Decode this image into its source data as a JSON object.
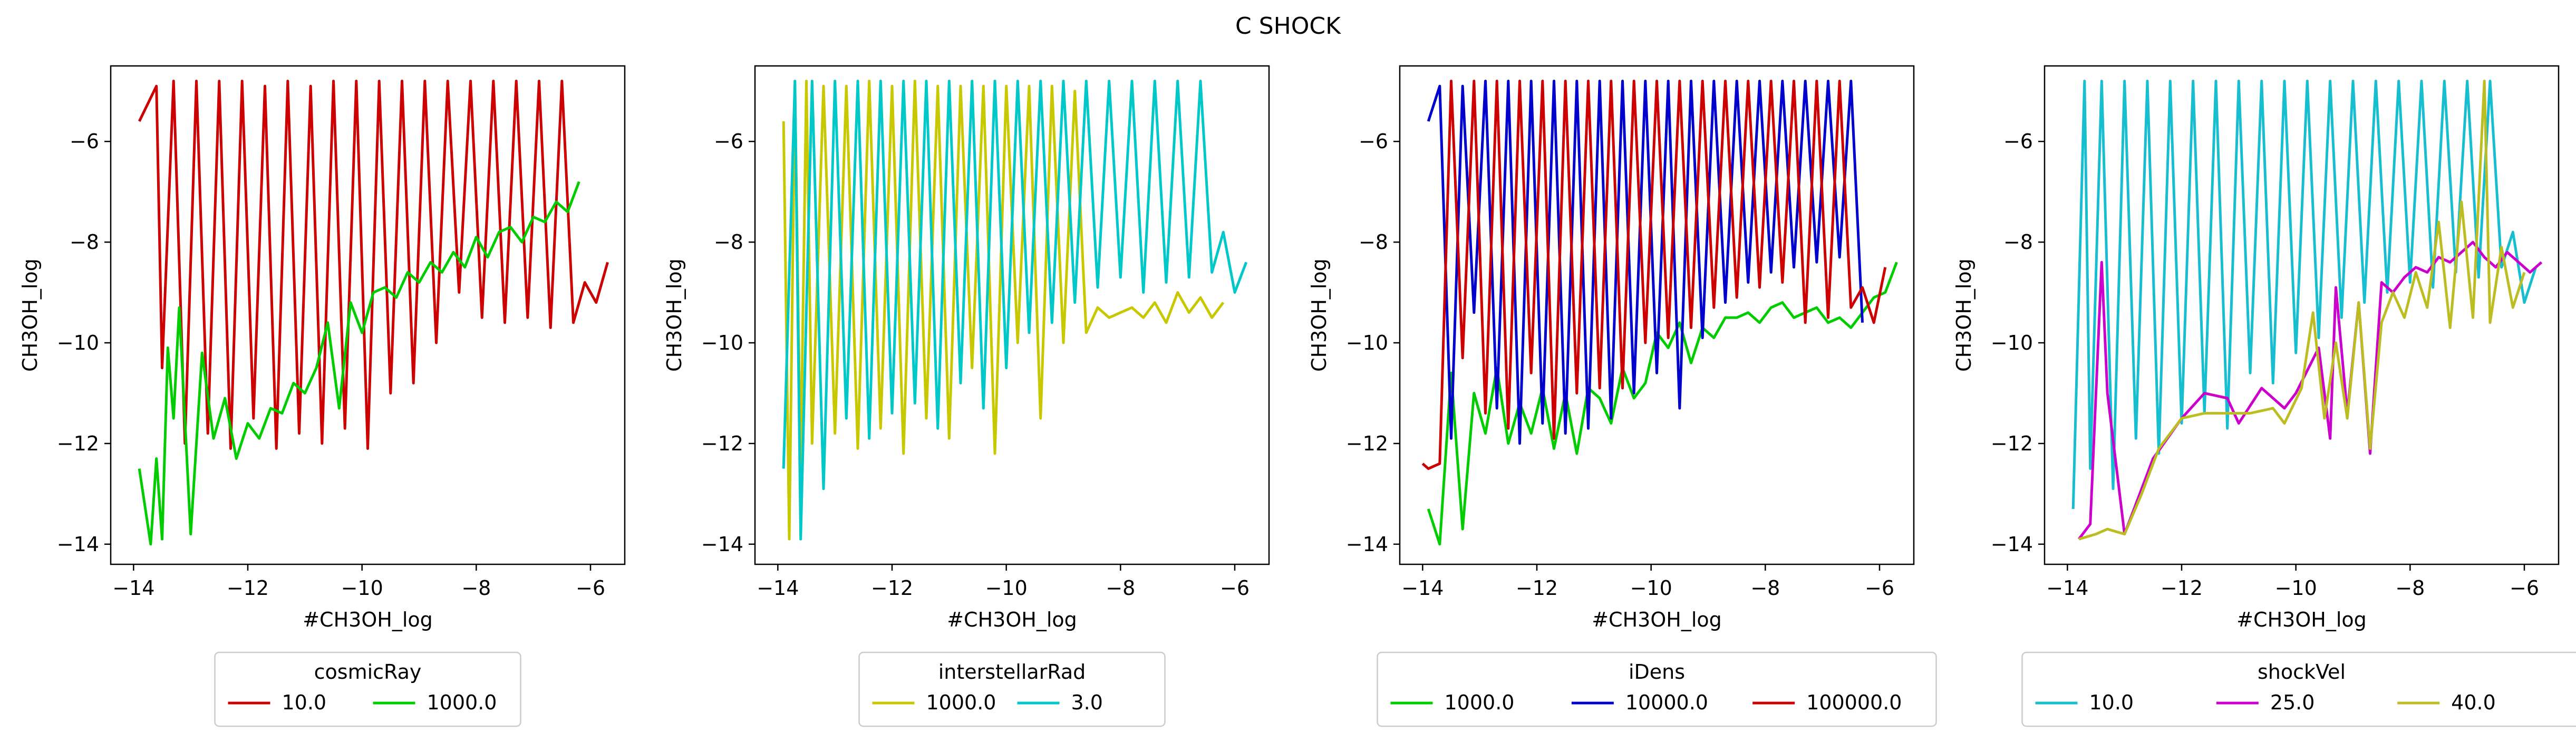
{
  "figure": {
    "title": "C SHOCK"
  },
  "chart_data": [
    {
      "type": "line",
      "xlabel": "#CH3OH_log",
      "ylabel": "CH3OH_log",
      "xlim": [
        -14.4,
        -5.4
      ],
      "ylim": [
        -14.4,
        -4.5
      ],
      "xticks": [
        -14,
        -12,
        -10,
        -8,
        -6
      ],
      "yticks": [
        -14,
        -12,
        -10,
        -8,
        -6
      ],
      "xtick_labels": [
        "−14",
        "−12",
        "−10",
        "−8",
        "−6"
      ],
      "ytick_labels": [
        "−14",
        "−12",
        "−10",
        "−8",
        "−6"
      ],
      "legend": {
        "title": "cosmicRay",
        "placement": "below",
        "columns": 2
      },
      "series": [
        {
          "name": "10.0",
          "color": "#cc0000",
          "x": [
            -13.9,
            -13.6,
            -13.5,
            -13.3,
            -13.1,
            -12.9,
            -12.7,
            -12.5,
            -12.3,
            -12.1,
            -11.9,
            -11.7,
            -11.5,
            -11.3,
            -11.1,
            -10.9,
            -10.7,
            -10.5,
            -10.3,
            -10.1,
            -9.9,
            -9.7,
            -9.5,
            -9.3,
            -9.1,
            -8.9,
            -8.7,
            -8.5,
            -8.3,
            -8.1,
            -7.9,
            -7.7,
            -7.5,
            -7.3,
            -7.1,
            -6.9,
            -6.7,
            -6.5,
            -6.3,
            -6.1,
            -5.9,
            -5.7
          ],
          "y": [
            -5.6,
            -4.9,
            -10.5,
            -4.8,
            -12.0,
            -4.8,
            -11.8,
            -4.8,
            -12.1,
            -4.8,
            -11.5,
            -4.9,
            -12.1,
            -4.8,
            -11.8,
            -4.9,
            -12.0,
            -4.8,
            -11.7,
            -4.8,
            -12.1,
            -4.8,
            -11.0,
            -4.8,
            -10.8,
            -4.8,
            -10.0,
            -4.8,
            -9.0,
            -4.8,
            -9.5,
            -4.8,
            -9.6,
            -4.8,
            -9.5,
            -4.8,
            -9.7,
            -4.8,
            -9.6,
            -8.8,
            -9.2,
            -8.4
          ]
        },
        {
          "name": "1000.0",
          "color": "#00cc00",
          "x": [
            -13.9,
            -13.7,
            -13.6,
            -13.5,
            -13.4,
            -13.3,
            -13.2,
            -13.0,
            -12.8,
            -12.6,
            -12.4,
            -12.2,
            -12.0,
            -11.8,
            -11.6,
            -11.4,
            -11.2,
            -11.0,
            -10.8,
            -10.6,
            -10.4,
            -10.2,
            -10.0,
            -9.8,
            -9.6,
            -9.4,
            -9.2,
            -9.0,
            -8.8,
            -8.6,
            -8.4,
            -8.2,
            -8.0,
            -7.8,
            -7.6,
            -7.4,
            -7.2,
            -7.0,
            -6.8,
            -6.6,
            -6.4,
            -6.2
          ],
          "y": [
            -12.5,
            -14.0,
            -12.3,
            -13.9,
            -10.1,
            -11.5,
            -9.3,
            -13.8,
            -10.2,
            -11.9,
            -11.1,
            -12.3,
            -11.6,
            -11.9,
            -11.3,
            -11.4,
            -10.8,
            -11.0,
            -10.5,
            -9.6,
            -11.3,
            -9.2,
            -9.8,
            -9.0,
            -8.9,
            -9.1,
            -8.6,
            -8.8,
            -8.4,
            -8.6,
            -8.2,
            -8.5,
            -7.9,
            -8.3,
            -7.8,
            -7.7,
            -8.0,
            -7.5,
            -7.6,
            -7.2,
            -7.4,
            -6.8
          ]
        }
      ]
    },
    {
      "type": "line",
      "xlabel": "#CH3OH_log",
      "ylabel": "CH3OH_log",
      "xlim": [
        -14.4,
        -5.4
      ],
      "ylim": [
        -14.4,
        -4.5
      ],
      "xticks": [
        -14,
        -12,
        -10,
        -8,
        -6
      ],
      "yticks": [
        -14,
        -12,
        -10,
        -8,
        -6
      ],
      "xtick_labels": [
        "−14",
        "−12",
        "−10",
        "−8",
        "−6"
      ],
      "ytick_labels": [
        "−14",
        "−12",
        "−10",
        "−8",
        "−6"
      ],
      "legend": {
        "title": "interstellarRad",
        "placement": "below",
        "columns": 2
      },
      "series": [
        {
          "name": "1000.0",
          "color": "#c8c800",
          "x": [
            -13.9,
            -13.8,
            -13.7,
            -13.6,
            -13.5,
            -13.4,
            -13.2,
            -13.0,
            -12.8,
            -12.6,
            -12.4,
            -12.2,
            -12.0,
            -11.8,
            -11.6,
            -11.4,
            -11.2,
            -11.0,
            -10.8,
            -10.6,
            -10.4,
            -10.2,
            -10.0,
            -9.8,
            -9.6,
            -9.4,
            -9.2,
            -9.0,
            -8.8,
            -8.6,
            -8.4,
            -8.2,
            -8.0,
            -7.8,
            -7.6,
            -7.4,
            -7.2,
            -7.0,
            -6.8,
            -6.6,
            -6.4,
            -6.2
          ],
          "y": [
            -5.6,
            -13.9,
            -4.9,
            -12.5,
            -4.8,
            -12.0,
            -4.9,
            -11.8,
            -4.9,
            -12.1,
            -4.8,
            -11.7,
            -4.9,
            -12.2,
            -4.8,
            -11.5,
            -4.9,
            -11.9,
            -4.9,
            -10.5,
            -4.9,
            -12.2,
            -4.9,
            -10.0,
            -4.9,
            -11.5,
            -4.9,
            -10.0,
            -5.0,
            -9.8,
            -9.3,
            -9.5,
            -9.4,
            -9.3,
            -9.5,
            -9.2,
            -9.6,
            -9.0,
            -9.4,
            -9.1,
            -9.5,
            -9.2
          ]
        },
        {
          "name": "3.0",
          "color": "#00c8c8",
          "x": [
            -13.9,
            -13.7,
            -13.6,
            -13.4,
            -13.2,
            -13.0,
            -12.8,
            -12.6,
            -12.4,
            -12.2,
            -12.0,
            -11.8,
            -11.6,
            -11.4,
            -11.2,
            -11.0,
            -10.8,
            -10.6,
            -10.4,
            -10.2,
            -10.0,
            -9.8,
            -9.6,
            -9.4,
            -9.2,
            -9.0,
            -8.8,
            -8.6,
            -8.4,
            -8.2,
            -8.0,
            -7.8,
            -7.6,
            -7.4,
            -7.2,
            -7.0,
            -6.8,
            -6.6,
            -6.4,
            -6.2,
            -6.0,
            -5.8
          ],
          "y": [
            -12.5,
            -4.8,
            -13.9,
            -4.8,
            -12.9,
            -4.8,
            -11.5,
            -4.8,
            -11.9,
            -4.8,
            -11.4,
            -4.8,
            -11.2,
            -4.8,
            -11.7,
            -4.8,
            -10.8,
            -4.8,
            -11.3,
            -4.8,
            -10.5,
            -4.8,
            -9.8,
            -4.8,
            -9.6,
            -4.8,
            -9.2,
            -4.8,
            -8.9,
            -4.8,
            -8.7,
            -4.8,
            -9.0,
            -4.8,
            -8.8,
            -4.8,
            -8.7,
            -4.8,
            -8.6,
            -7.8,
            -9.0,
            -8.4
          ]
        }
      ]
    },
    {
      "type": "line",
      "xlabel": "#CH3OH_log",
      "ylabel": "CH3OH_log",
      "xlim": [
        -14.4,
        -5.4
      ],
      "ylim": [
        -14.4,
        -4.5
      ],
      "xticks": [
        -14,
        -12,
        -10,
        -8,
        -6
      ],
      "yticks": [
        -14,
        -12,
        -10,
        -8,
        -6
      ],
      "xtick_labels": [
        "−14",
        "−12",
        "−10",
        "−8",
        "−6"
      ],
      "ytick_labels": [
        "−14",
        "−12",
        "−10",
        "−8",
        "−6"
      ],
      "legend": {
        "title": "iDens",
        "placement": "below",
        "columns": 3
      },
      "series": [
        {
          "name": "1000.0",
          "color": "#00cc00",
          "x": [
            -13.9,
            -13.7,
            -13.5,
            -13.3,
            -13.1,
            -12.9,
            -12.7,
            -12.5,
            -12.3,
            -12.1,
            -11.9,
            -11.7,
            -11.5,
            -11.3,
            -11.1,
            -10.9,
            -10.7,
            -10.5,
            -10.3,
            -10.1,
            -9.9,
            -9.7,
            -9.5,
            -9.3,
            -9.1,
            -8.9,
            -8.7,
            -8.5,
            -8.3,
            -8.1,
            -7.9,
            -7.7,
            -7.5,
            -7.3,
            -7.1,
            -6.9,
            -6.7,
            -6.5,
            -6.3,
            -6.1,
            -5.9,
            -5.7
          ],
          "y": [
            -13.3,
            -14.0,
            -10.6,
            -13.7,
            -11.0,
            -11.8,
            -10.5,
            -12.0,
            -11.2,
            -11.8,
            -10.9,
            -12.1,
            -11.0,
            -12.2,
            -10.9,
            -11.1,
            -11.6,
            -10.5,
            -11.1,
            -10.8,
            -9.8,
            -10.1,
            -9.6,
            -10.4,
            -9.7,
            -9.9,
            -9.5,
            -9.5,
            -9.4,
            -9.6,
            -9.3,
            -9.2,
            -9.5,
            -9.4,
            -9.3,
            -9.6,
            -9.5,
            -9.7,
            -9.4,
            -9.1,
            -9.0,
            -8.4
          ]
        },
        {
          "name": "10000.0",
          "color": "#0000cc",
          "x": [
            -13.9,
            -13.7,
            -13.5,
            -13.3,
            -13.1,
            -12.9,
            -12.7,
            -12.5,
            -12.3,
            -12.1,
            -11.9,
            -11.7,
            -11.5,
            -11.3,
            -11.1,
            -10.9,
            -10.7,
            -10.5,
            -10.3,
            -10.1,
            -9.9,
            -9.7,
            -9.5,
            -9.3,
            -9.1,
            -8.9,
            -8.7,
            -8.5,
            -8.3,
            -8.1,
            -7.9,
            -7.7,
            -7.5,
            -7.3,
            -7.1,
            -6.9,
            -6.7,
            -6.5,
            -6.3
          ],
          "y": [
            -5.6,
            -4.9,
            -11.9,
            -4.9,
            -9.4,
            -4.8,
            -11.3,
            -4.8,
            -12.0,
            -4.8,
            -11.6,
            -4.8,
            -11.8,
            -4.8,
            -11.7,
            -4.8,
            -11.5,
            -4.8,
            -11.0,
            -4.8,
            -10.6,
            -4.8,
            -11.3,
            -4.8,
            -9.9,
            -4.8,
            -9.2,
            -4.8,
            -8.8,
            -4.8,
            -8.6,
            -4.8,
            -8.5,
            -4.8,
            -8.4,
            -4.8,
            -8.3,
            -4.8,
            -9.6
          ]
        },
        {
          "name": "100000.0",
          "color": "#cc0000",
          "x": [
            -14.0,
            -13.9,
            -13.7,
            -13.5,
            -13.3,
            -13.1,
            -12.9,
            -12.7,
            -12.5,
            -12.3,
            -12.1,
            -11.9,
            -11.7,
            -11.5,
            -11.3,
            -11.1,
            -10.9,
            -10.7,
            -10.5,
            -10.3,
            -10.1,
            -9.9,
            -9.7,
            -9.5,
            -9.3,
            -9.1,
            -8.9,
            -8.7,
            -8.5,
            -8.3,
            -8.1,
            -7.9,
            -7.7,
            -7.5,
            -7.3,
            -7.1,
            -6.9,
            -6.7,
            -6.5,
            -6.3,
            -6.1,
            -5.9
          ],
          "y": [
            -12.4,
            -12.5,
            -12.4,
            -4.8,
            -10.3,
            -4.8,
            -11.4,
            -4.8,
            -11.7,
            -4.8,
            -10.6,
            -4.8,
            -11.9,
            -4.8,
            -11.0,
            -4.8,
            -10.9,
            -4.8,
            -10.9,
            -4.8,
            -10.0,
            -4.8,
            -9.9,
            -4.8,
            -9.7,
            -4.8,
            -9.3,
            -4.8,
            -9.1,
            -4.8,
            -8.9,
            -4.8,
            -8.8,
            -4.8,
            -9.6,
            -4.8,
            -9.5,
            -4.8,
            -9.3,
            -8.9,
            -9.6,
            -8.5
          ]
        }
      ]
    },
    {
      "type": "line",
      "xlabel": "#CH3OH_log",
      "ylabel": "CH3OH_log",
      "xlim": [
        -14.4,
        -5.4
      ],
      "ylim": [
        -14.4,
        -4.5
      ],
      "xticks": [
        -14,
        -12,
        -10,
        -8,
        -6
      ],
      "yticks": [
        -14,
        -12,
        -10,
        -8,
        -6
      ],
      "xtick_labels": [
        "−14",
        "−12",
        "−10",
        "−8",
        "−6"
      ],
      "ytick_labels": [
        "−14",
        "−12",
        "−10",
        "−8",
        "−6"
      ],
      "legend": {
        "title": "shockVel",
        "placement": "below",
        "columns": 3
      },
      "series": [
        {
          "name": "10.0",
          "color": "#17becf",
          "x": [
            -13.9,
            -13.7,
            -13.6,
            -13.4,
            -13.2,
            -13.0,
            -12.8,
            -12.6,
            -12.4,
            -12.2,
            -12.0,
            -11.8,
            -11.6,
            -11.4,
            -11.2,
            -11.0,
            -10.8,
            -10.6,
            -10.4,
            -10.2,
            -10.0,
            -9.8,
            -9.6,
            -9.4,
            -9.2,
            -9.0,
            -8.8,
            -8.6,
            -8.4,
            -8.2,
            -8.0,
            -7.8,
            -7.6,
            -7.4,
            -7.2,
            -7.0,
            -6.8,
            -6.6,
            -6.4,
            -6.2,
            -6.0,
            -5.8
          ],
          "y": [
            -13.3,
            -4.8,
            -12.5,
            -4.8,
            -12.9,
            -4.8,
            -11.9,
            -4.8,
            -12.2,
            -4.8,
            -11.6,
            -4.8,
            -11.4,
            -4.8,
            -11.7,
            -4.8,
            -10.6,
            -4.8,
            -10.8,
            -4.8,
            -10.2,
            -4.8,
            -9.9,
            -4.8,
            -9.5,
            -4.8,
            -9.2,
            -4.8,
            -9.0,
            -4.8,
            -8.8,
            -4.8,
            -8.9,
            -4.8,
            -8.6,
            -4.8,
            -8.7,
            -4.8,
            -8.5,
            -7.8,
            -9.2,
            -8.5
          ]
        },
        {
          "name": "25.0",
          "color": "#cc00cc",
          "x": [
            -13.8,
            -13.6,
            -13.4,
            -13.3,
            -13.0,
            -12.5,
            -12.0,
            -11.6,
            -11.2,
            -11.0,
            -10.6,
            -10.2,
            -10.0,
            -9.6,
            -9.4,
            -9.3,
            -9.1,
            -8.9,
            -8.7,
            -8.5,
            -8.3,
            -8.1,
            -7.9,
            -7.7,
            -7.5,
            -7.3,
            -7.1,
            -6.9,
            -6.7,
            -6.5,
            -6.3,
            -6.1,
            -5.9,
            -5.7
          ],
          "y": [
            -13.9,
            -13.6,
            -8.4,
            -11.0,
            -13.8,
            -12.3,
            -11.5,
            -11.0,
            -11.1,
            -11.6,
            -10.9,
            -11.3,
            -11.0,
            -10.1,
            -11.9,
            -8.9,
            -11.4,
            -9.2,
            -12.2,
            -8.8,
            -9.0,
            -8.7,
            -8.5,
            -8.6,
            -8.3,
            -8.4,
            -8.2,
            -8.0,
            -8.3,
            -8.5,
            -8.2,
            -8.4,
            -8.6,
            -8.4
          ]
        },
        {
          "name": "40.0",
          "color": "#bcbd22",
          "x": [
            -13.8,
            -13.5,
            -13.3,
            -13.0,
            -12.7,
            -12.4,
            -12.2,
            -12.0,
            -11.6,
            -11.2,
            -10.8,
            -10.4,
            -10.2,
            -9.9,
            -9.7,
            -9.5,
            -9.3,
            -9.1,
            -8.9,
            -8.7,
            -8.5,
            -8.3,
            -8.1,
            -7.9,
            -7.7,
            -7.5,
            -7.3,
            -7.1,
            -6.9,
            -6.7,
            -6.6,
            -6.4,
            -6.2,
            -6.0
          ],
          "y": [
            -13.9,
            -13.8,
            -13.7,
            -13.8,
            -13.0,
            -12.1,
            -11.8,
            -11.5,
            -11.4,
            -11.4,
            -11.4,
            -11.3,
            -11.6,
            -10.9,
            -9.4,
            -11.5,
            -10.0,
            -11.5,
            -9.2,
            -12.1,
            -9.6,
            -9.0,
            -9.5,
            -8.6,
            -9.3,
            -7.6,
            -9.7,
            -7.2,
            -9.5,
            -4.8,
            -9.6,
            -8.1,
            -9.3,
            -8.6
          ]
        }
      ]
    }
  ]
}
